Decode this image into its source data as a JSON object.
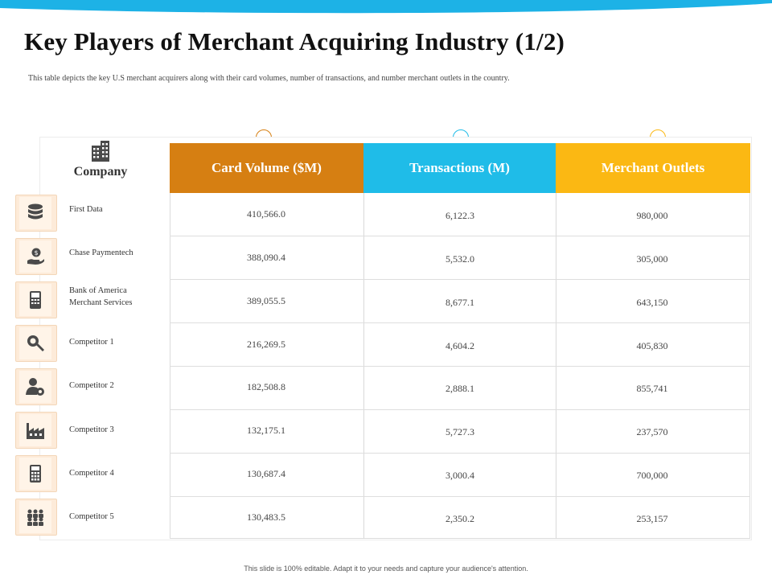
{
  "title": "Key Players of Merchant Acquiring Industry (1/2)",
  "subtitle": "This table depicts the key U.S merchant acquirers along with their card volumes, number of transactions, and number merchant outlets in the country.",
  "company_header": "Company",
  "columns": [
    {
      "label": "Card Volume ($M)",
      "color": "#d67f12"
    },
    {
      "label": "Transactions (M)",
      "color": "#1fbce8"
    },
    {
      "label": "Merchant Outlets",
      "color": "#fbb813"
    }
  ],
  "rows": [
    {
      "company": "First Data",
      "icon": "database-icon",
      "card_volume": "410,566.0",
      "transactions": "6,122.3",
      "outlets": "980,000"
    },
    {
      "company": "Chase Paymentech",
      "icon": "hand-dollar-icon",
      "card_volume": "388,090.4",
      "transactions": "5,532.0",
      "outlets": "305,000"
    },
    {
      "company": "Bank of America Merchant Services",
      "icon": "card-terminal-icon",
      "card_volume": "389,055.5",
      "transactions": "8,677.1",
      "outlets": "643,150"
    },
    {
      "company": "Competitor 1",
      "icon": "magnifier-icon",
      "card_volume": "216,269.5",
      "transactions": "4,604.2",
      "outlets": "405,830"
    },
    {
      "company": "Competitor 2",
      "icon": "user-gear-icon",
      "card_volume": "182,508.8",
      "transactions": "2,888.1",
      "outlets": "855,741"
    },
    {
      "company": "Competitor 3",
      "icon": "factory-icon",
      "card_volume": "132,175.1",
      "transactions": "5,727.3",
      "outlets": "237,570"
    },
    {
      "company": "Competitor 4",
      "icon": "calculator-icon",
      "card_volume": "130,687.4",
      "transactions": "3,000.4",
      "outlets": "700,000"
    },
    {
      "company": "Competitor 5",
      "icon": "team-icon",
      "card_volume": "130,483.5",
      "transactions": "2,350.2",
      "outlets": "253,157"
    }
  ],
  "footer": "This slide is 100% editable. Adapt it to your needs and capture your audience's attention."
}
